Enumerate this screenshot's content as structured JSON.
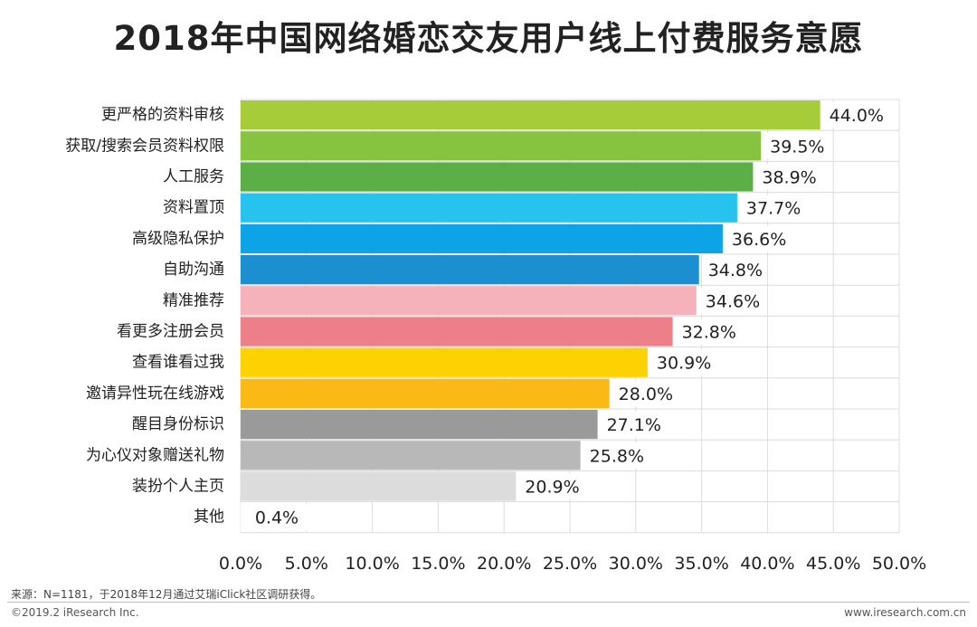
{
  "chart_data": {
    "type": "bar",
    "orientation": "horizontal",
    "title": "2018年中国网络婚恋交友用户线上付费服务意愿",
    "categories": [
      "更严格的资料审核",
      "获取/搜索会员资料权限",
      "人工服务",
      "资料置顶",
      "高级隐私保护",
      "自助沟通",
      "精准推荐",
      "看更多注册会员",
      "查看谁看过我",
      "邀请异性玩在线游戏",
      "醒目身份标识",
      "为心仪对象赠送礼物",
      "装扮个人主页",
      "其他"
    ],
    "values": [
      44.0,
      39.5,
      38.9,
      37.7,
      36.6,
      34.8,
      34.6,
      32.8,
      30.9,
      28.0,
      27.1,
      25.8,
      20.9,
      0.4
    ],
    "value_labels": [
      "44.0%",
      "39.5%",
      "38.9%",
      "37.7%",
      "36.6%",
      "34.8%",
      "34.6%",
      "32.8%",
      "30.9%",
      "28.0%",
      "27.1%",
      "25.8%",
      "20.9%",
      "0.4%"
    ],
    "colors": [
      "#a7cc3a",
      "#86c440",
      "#5caf46",
      "#27c2ee",
      "#0ca4e6",
      "#1b8fcf",
      "#f6b2bb",
      "#ec7f88",
      "#fed100",
      "#fab914",
      "#9a9a9a",
      "#b8b8b8",
      "#dcdcdc",
      "#ffffff"
    ],
    "xlim": [
      0,
      50
    ],
    "x_ticks": [
      "0.0%",
      "5.0%",
      "10.0%",
      "15.0%",
      "20.0%",
      "25.0%",
      "30.0%",
      "35.0%",
      "40.0%",
      "45.0%",
      "50.0%"
    ],
    "x_tick_values": [
      0,
      5,
      10,
      15,
      20,
      25,
      30,
      35,
      40,
      45,
      50
    ],
    "xlabel": "",
    "ylabel": "",
    "grid": true
  },
  "footer": {
    "source": "来源：N=1181，于2018年12月通过艾瑞iClick社区调研获得。",
    "copyright": "©2019.2 iResearch Inc.",
    "website": "www.iresearch.com.cn"
  }
}
